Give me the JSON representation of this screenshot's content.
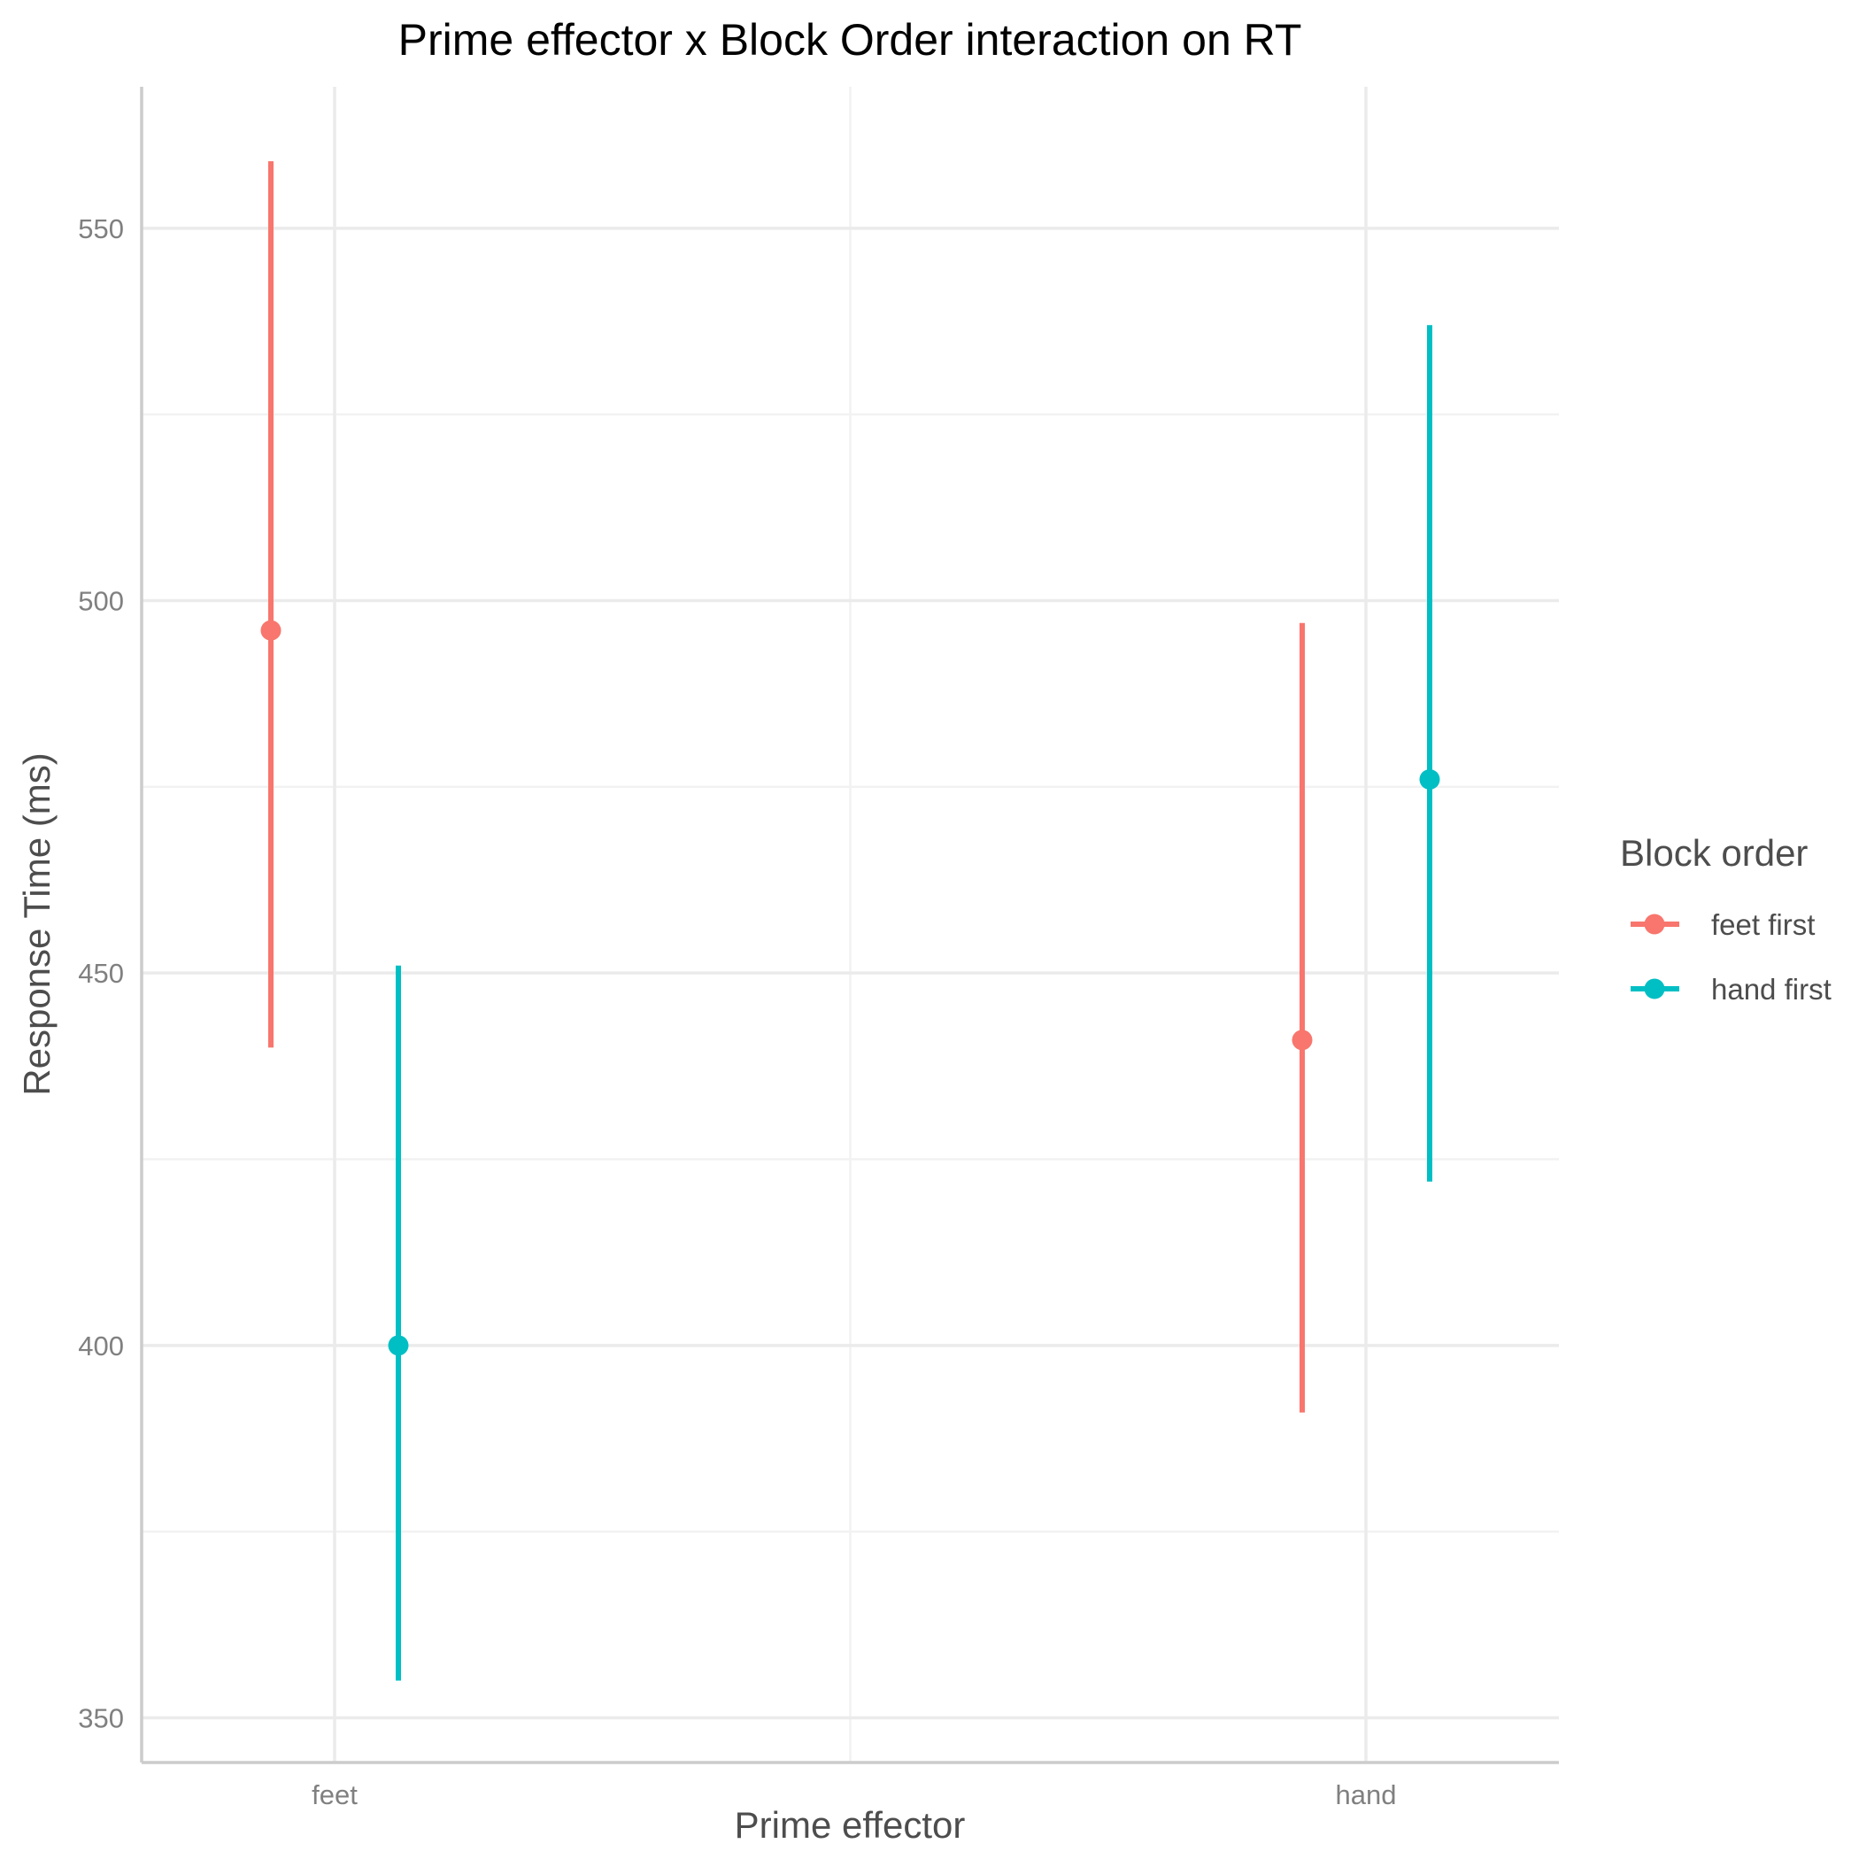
{
  "chart_data": {
    "type": "scatter",
    "title": "Prime effector x Block Order interaction on RT",
    "xlabel": "Prime effector",
    "ylabel": "Response Time (ms)",
    "categories": [
      "feet",
      "hand"
    ],
    "ylim": [
      344,
      569
    ],
    "yticks": [
      350,
      400,
      450,
      500,
      550
    ],
    "grid": true,
    "legend": {
      "title": "Block order",
      "position": "right"
    },
    "series": [
      {
        "name": "feet first",
        "color": "#F8766D",
        "points": [
          {
            "x": "feet",
            "y": 496,
            "ymin": 440,
            "ymax": 559
          },
          {
            "x": "hand",
            "y": 441,
            "ymin": 391,
            "ymax": 497
          }
        ]
      },
      {
        "name": "hand first",
        "color": "#00BFC4",
        "points": [
          {
            "x": "feet",
            "y": 400,
            "ymin": 355,
            "ymax": 451
          },
          {
            "x": "hand",
            "y": 476,
            "ymin": 422,
            "ymax": 537
          }
        ]
      }
    ]
  }
}
